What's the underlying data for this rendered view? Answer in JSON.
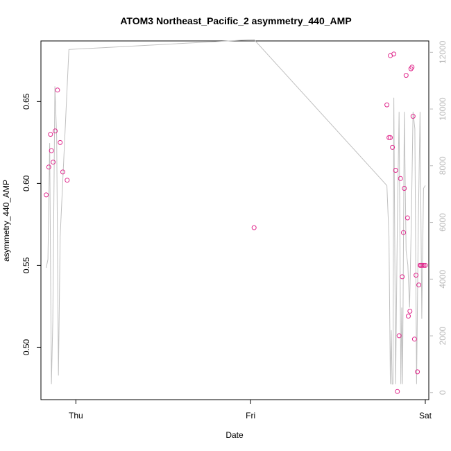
{
  "chart_data": {
    "type": "scatter",
    "title": "ATOM3 Northeast_Pacific_2 asymmetry_440_AMP",
    "xlabel": "Date",
    "ylabel": "asymmetry_440_AMP",
    "x_ticks": [
      "Thu",
      "Fri",
      "Sat"
    ],
    "x_range_days": [
      -0.2,
      2.02
    ],
    "ylim": [
      0.468,
      0.687
    ],
    "y_ticks": [
      "0.50",
      "0.55",
      "0.60",
      "0.65"
    ],
    "y2lim": [
      -250,
      12400
    ],
    "y2_ticks": [
      "0",
      "2000",
      "4000",
      "6000",
      "8000",
      "10000",
      "12000"
    ],
    "grid": false,
    "legend": "none",
    "colors": {
      "points": "#e0288c",
      "line": "#c0c0c0",
      "right_axis": "#b8b8b8",
      "frame": "#000000"
    },
    "series": [
      {
        "kind": "points",
        "x": [
          -0.17,
          -0.155,
          -0.145,
          -0.14,
          -0.13,
          -0.118,
          -0.105,
          -0.09,
          -0.075,
          -0.05,
          1.02,
          1.78,
          1.792,
          1.8,
          1.8,
          1.812,
          1.82,
          1.83,
          1.84,
          1.85,
          1.858,
          1.868,
          1.875,
          1.88,
          1.89,
          1.898,
          1.903,
          1.912,
          1.918,
          1.924,
          1.93,
          1.938,
          1.947,
          1.955,
          1.963,
          1.97,
          1.975,
          1.982,
          1.992,
          2.0
        ],
        "y": [
          0.593,
          0.61,
          0.63,
          0.62,
          0.613,
          0.632,
          0.657,
          0.625,
          0.607,
          0.602,
          0.573,
          0.648,
          0.628,
          0.678,
          0.628,
          0.622,
          0.679,
          0.608,
          0.473,
          0.507,
          0.603,
          0.543,
          0.57,
          0.597,
          0.666,
          0.579,
          0.519,
          0.522,
          0.67,
          0.671,
          0.641,
          0.505,
          0.544,
          0.485,
          0.538,
          0.55,
          0.55,
          0.55,
          0.55,
          0.55
        ]
      },
      {
        "kind": "line",
        "axis": "right",
        "x": [
          -0.17,
          -0.16,
          -0.15,
          -0.14,
          -0.132,
          -0.12,
          -0.11,
          -0.1,
          -0.09,
          -0.04,
          1.02,
          1.78,
          1.792,
          1.8,
          1.805,
          1.81,
          1.815,
          1.82,
          1.83,
          1.84,
          1.85,
          1.86,
          1.865,
          1.87,
          1.88,
          1.89,
          1.9,
          1.91,
          1.92,
          1.93,
          1.94,
          1.95,
          1.96,
          1.97,
          1.98,
          1.99,
          2.0
        ],
        "y": [
          4400,
          4700,
          8800,
          300,
          2500,
          10800,
          9000,
          600,
          5500,
          12100,
          12450,
          7300,
          5500,
          300,
          2200,
          300,
          300,
          10400,
          300,
          6000,
          9900,
          300,
          3000,
          300,
          9900,
          5000,
          4500,
          3000,
          6000,
          9900,
          9300,
          300,
          6000,
          9900,
          2600,
          7200,
          7300
        ]
      }
    ]
  }
}
